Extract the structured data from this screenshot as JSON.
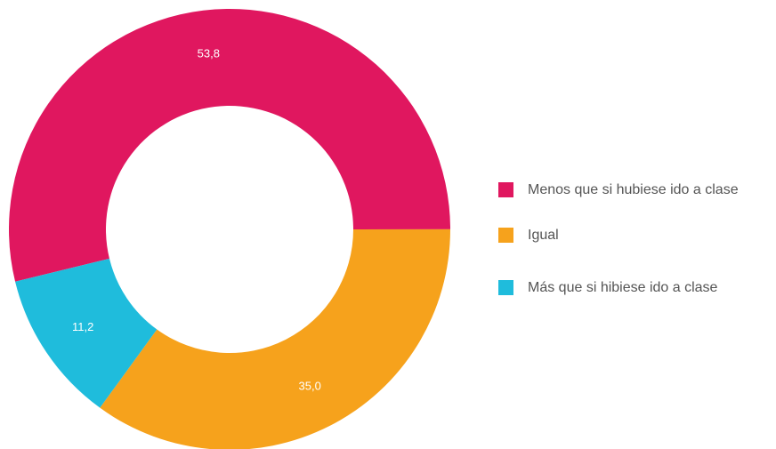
{
  "chart_data": {
    "type": "donut",
    "categories": [
      "Menos que si hubiese ido a clase",
      "Igual",
      "Más que si hibiese ido a clase"
    ],
    "values": [
      53.8,
      35.0,
      11.2
    ],
    "value_labels": [
      "53,8",
      "35,0",
      "11,2"
    ],
    "colors": [
      "#e0175f",
      "#f6a21c",
      "#1fbcdc"
    ],
    "legend": "right"
  }
}
